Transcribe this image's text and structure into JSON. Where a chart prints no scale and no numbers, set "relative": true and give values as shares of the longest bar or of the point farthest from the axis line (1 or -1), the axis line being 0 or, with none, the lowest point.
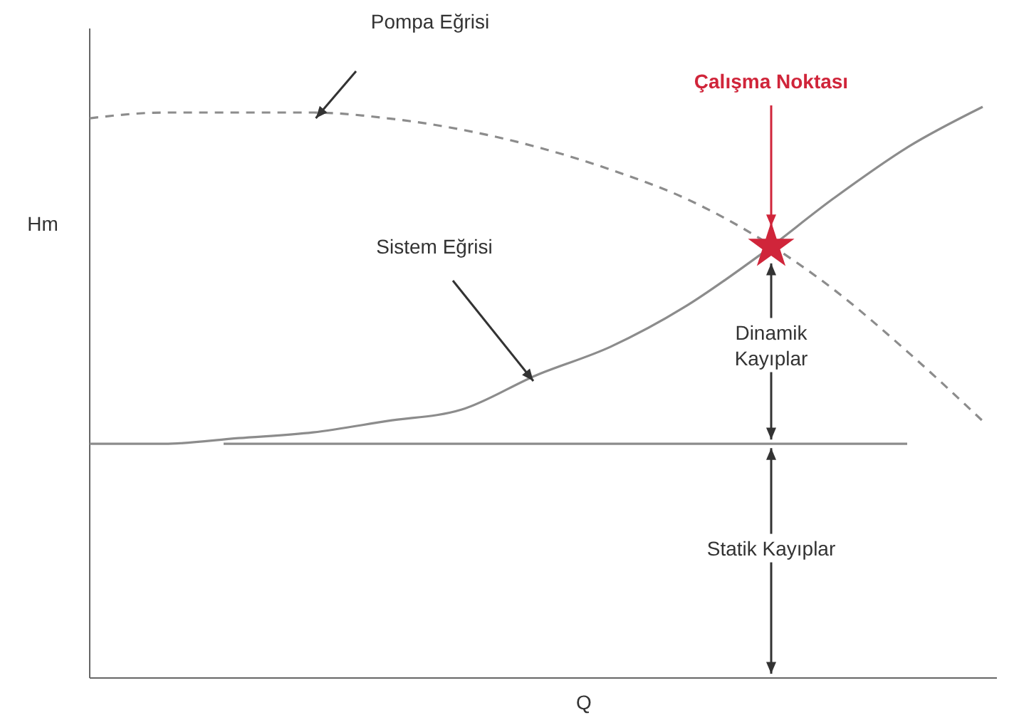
{
  "chart_data": {
    "type": "line",
    "relative": true,
    "xlabel": "Q",
    "ylabel": "Hm",
    "marker": "none",
    "categories": [
      null,
      null,
      null,
      null,
      null,
      null,
      null,
      null,
      null,
      null,
      null,
      null,
      null
    ],
    "series": [
      {
        "color": "#8c8c8c",
        "line_style": "dashed",
        "values": [
          0.98,
          0.99,
          0.99,
          0.99,
          0.98,
          0.96,
          0.93,
          0.89,
          0.84,
          0.77,
          0.68,
          0.57,
          0.45
        ]
      },
      {
        "color": "#8c8c8c",
        "line_style": "solid",
        "values": [
          0.41,
          0.41,
          0.42,
          0.43,
          0.45,
          0.47,
          0.53,
          0.58,
          0.65,
          0.74,
          0.84,
          0.93,
          1
        ]
      }
    ],
    "ref_lines": [
      {
        "axis": "y",
        "value": 0.41,
        "color": "#8c8c8c"
      }
    ],
    "annotations": [
      "Pompa Eğrisi",
      "Sistem Eğrisi",
      "Çalışma Noktası",
      "Dinamik Kayıplar",
      "Statik Kayıplar"
    ]
  }
}
